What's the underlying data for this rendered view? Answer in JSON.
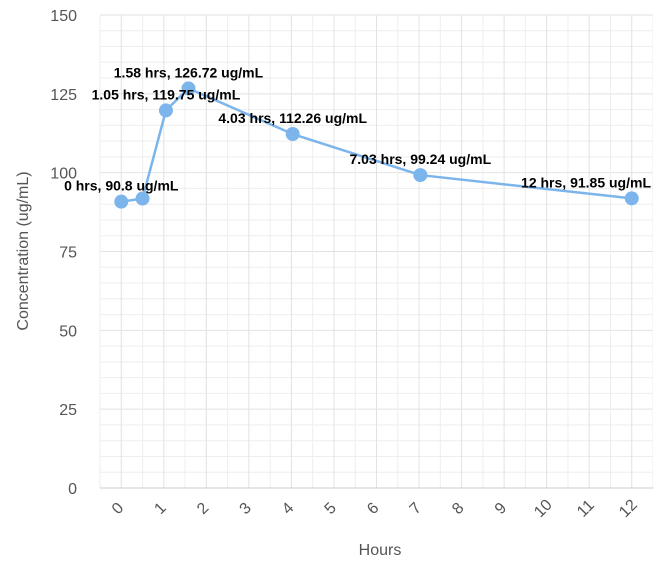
{
  "chart_data": {
    "type": "line",
    "xlabel": "Hours",
    "ylabel": "Concentration (ug/mL)",
    "xlim": [
      -0.5,
      12.5
    ],
    "ylim": [
      0,
      150
    ],
    "x_ticks": [
      0,
      1,
      2,
      3,
      4,
      5,
      6,
      7,
      8,
      9,
      10,
      11,
      12
    ],
    "y_ticks": [
      0,
      25,
      50,
      75,
      100,
      125,
      150
    ],
    "grid": true,
    "legend": "none",
    "series": [
      {
        "color": "#7cb5ec",
        "points": [
          {
            "x": 0,
            "y": 90.8
          },
          {
            "x": 0.5,
            "y": 91.8
          },
          {
            "x": 1.05,
            "y": 119.75
          },
          {
            "x": 1.58,
            "y": 126.72
          },
          {
            "x": 4.03,
            "y": 112.26
          },
          {
            "x": 7.03,
            "y": 99.24
          },
          {
            "x": 12,
            "y": 91.85
          }
        ]
      }
    ],
    "data_labels": [
      {
        "point_index": 0,
        "text": "0 hrs, 90.8 ug/mL"
      },
      {
        "point_index": 2,
        "text": "1.05 hrs, 119.75 ug/mL"
      },
      {
        "point_index": 3,
        "text": "1.58 hrs, 126.72 ug/mL"
      },
      {
        "point_index": 4,
        "text": "4.03 hrs, 112.26 ug/mL"
      },
      {
        "point_index": 5,
        "text": "7.03 hrs, 99.24 ug/mL"
      },
      {
        "point_index": 6,
        "text": "12 hrs, 91.85 ug/mL"
      }
    ]
  }
}
